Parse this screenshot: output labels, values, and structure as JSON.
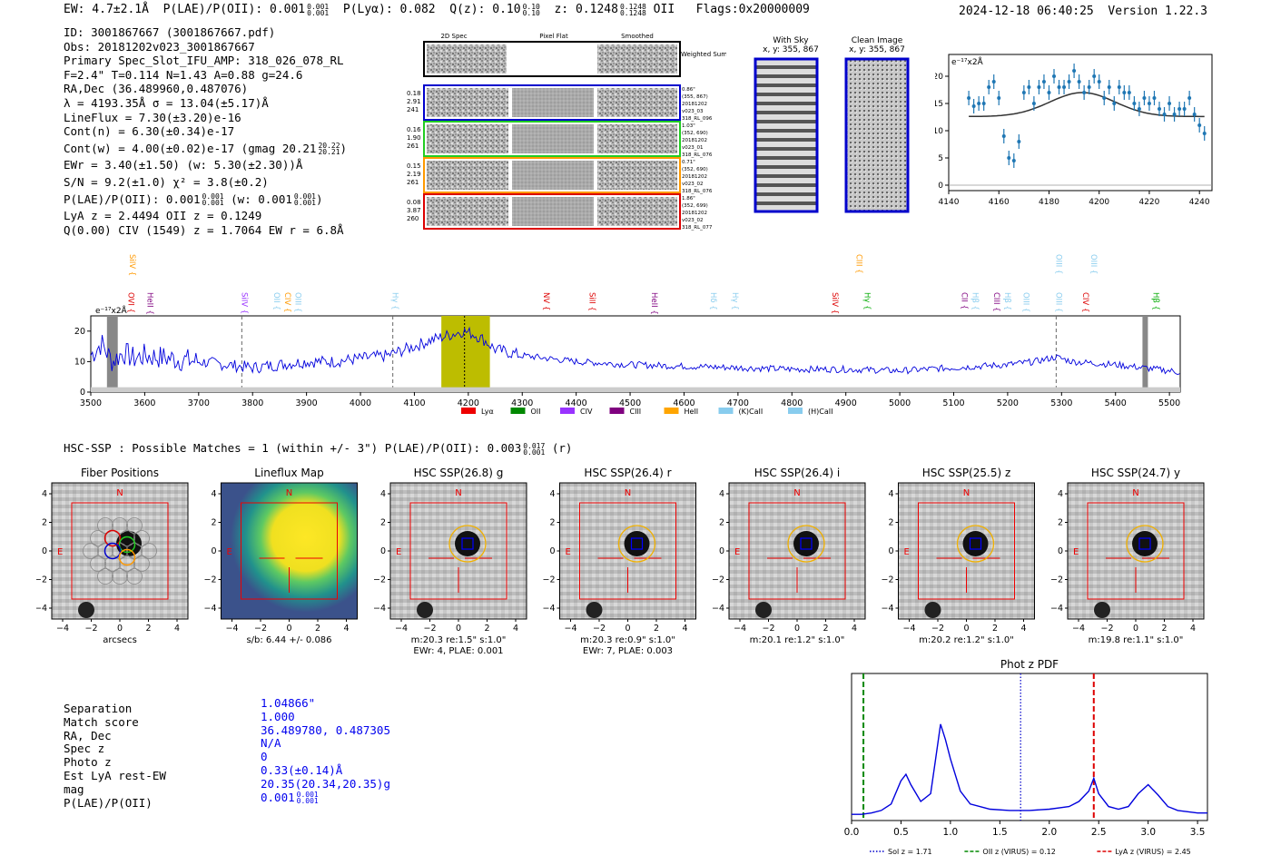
{
  "header": {
    "ew": "EW: 4.7±2.1Å",
    "plae": "P(LAE)/P(OII): 0.001",
    "plae_frac": [
      "0.001",
      "0.001"
    ],
    "plya": "P(Lyα): 0.082",
    "qz": "Q(z): 0.10",
    "qz_frac": [
      "0.10",
      "0.10"
    ],
    "z": "z: 0.1248",
    "z_frac": [
      "0.1248",
      "0.1248"
    ],
    "z_line": "OII",
    "flags": "Flags:0x20000009",
    "datetime": "2024-12-18 06:40:25",
    "version": "Version 1.22.3"
  },
  "info": {
    "lines": [
      "ID: 3001867667 (3001867667.pdf)",
      "Obs: 20181202v023_3001867667",
      "Primary Spec_Slot_IFU_AMP: 318_026_078_RL",
      "F=2.4\"  T=0.114  N=1.43  A=0.88  g=24.6",
      "RA,Dec (36.489960,0.487076)",
      "λ = 4193.35Å  σ = 13.04(±5.17)Å",
      "LineFlux = 7.30(±3.20)e-16",
      "Cont(n) = 6.30(±0.34)e-17",
      "Cont(w) = 4.00(±0.02)e-17 (gmag 20.21",
      "EWr = 3.40(±1.50) (w: 5.30(±2.30))Å",
      "S/N = 9.2(±1.0)  χ² = 3.8(±0.2)",
      "P(LAE)/P(OII): 0.001",
      "LyA z = 2.4494  OII z = 0.1249",
      "Q(0.00) CIV (1549) z = 1.7064  EW r = 6.8Å"
    ],
    "gmag_frac": [
      "20.22",
      "20.21"
    ],
    "plae_frac": [
      "0.001",
      "0.001"
    ],
    "plae_w": "(w: 0.001",
    "plae_w_frac": [
      "0.001",
      "0.001"
    ]
  },
  "cutouts": {
    "col_titles": [
      "2D Spec",
      "Pixel Flat",
      "Smoothed"
    ],
    "weighted_label": "Weighted Sum",
    "rows": [
      {
        "left": [
          "0.18",
          "2.91",
          "241"
        ],
        "right": [
          "0.86\"",
          "(355, 867)",
          "20181202",
          "v023_03",
          "318_RL_096"
        ],
        "color": "#0000cc"
      },
      {
        "left": [
          "0.16",
          "1.90",
          "261"
        ],
        "right": [
          "1.03\"",
          "(352, 690)",
          "20181202",
          "v023_01",
          "318_RL_076"
        ],
        "color": "#22cc22"
      },
      {
        "left": [
          "0.15",
          "2.19",
          "261"
        ],
        "right": [
          "0.71\"",
          "(352, 690)",
          "20181202",
          "v023_02",
          "318_RL_076"
        ],
        "color": "#ff9900"
      },
      {
        "left": [
          "0.08",
          "3.87",
          "260"
        ],
        "right": [
          "1.86\"",
          "(352, 699)",
          "20181202",
          "v023_02",
          "318_RL_077"
        ],
        "color": "#dd0000"
      }
    ],
    "with_sky_title": "With Sky",
    "clean_title": "Clean Image",
    "xy_label": "x, y: 355, 867"
  },
  "zoom_chart": {
    "type": "scatter",
    "ylabel": "e⁻¹⁷x2Å",
    "xlim": [
      4140,
      4245
    ],
    "ylim": [
      -1,
      24
    ],
    "xticks": [
      "4140",
      "4160",
      "4180",
      "4200",
      "4220",
      "4240"
    ],
    "yticks": [
      "0",
      "5",
      "10",
      "15",
      "20"
    ],
    "x": [
      4148,
      4150,
      4152,
      4154,
      4156,
      4158,
      4160,
      4162,
      4164,
      4166,
      4168,
      4170,
      4172,
      4174,
      4176,
      4178,
      4180,
      4182,
      4184,
      4186,
      4188,
      4190,
      4192,
      4194,
      4196,
      4198,
      4200,
      4202,
      4204,
      4206,
      4208,
      4210,
      4212,
      4214,
      4216,
      4218,
      4220,
      4222,
      4224,
      4226,
      4228,
      4230,
      4232,
      4234,
      4236,
      4238,
      4240,
      4242
    ],
    "y": [
      16,
      14.5,
      15,
      15,
      18,
      19,
      16,
      9,
      5,
      4.5,
      8,
      17,
      18,
      15,
      18,
      19,
      17,
      20,
      18,
      18,
      19,
      21,
      19,
      17,
      18,
      20,
      19,
      16,
      18,
      15,
      18,
      17,
      17,
      15,
      14,
      16,
      15,
      16,
      14,
      13,
      15,
      13,
      14,
      14,
      16,
      13,
      11,
      9.5
    ],
    "fit_center": 4193.35,
    "fit_amp": 4.4,
    "fit_base": 12.6,
    "fit_sigma": 13.04
  },
  "full_spectrum": {
    "type": "line",
    "ylabel": "e⁻¹⁷x2Å",
    "xlim": [
      3500,
      5520
    ],
    "ylim": [
      0,
      25
    ],
    "xticks": [
      "3500",
      "3600",
      "3700",
      "3800",
      "3900",
      "4000",
      "4100",
      "4200",
      "4300",
      "4400",
      "4500",
      "4600",
      "4700",
      "4800",
      "4900",
      "5000",
      "5100",
      "5200",
      "5300",
      "5400",
      "5500"
    ],
    "yticks": [
      "0",
      "10",
      "20"
    ],
    "highlight": [
      4150,
      4240
    ],
    "obs_line": 4193,
    "dashed_lines": [
      3780,
      4060,
      5290
    ],
    "masked": [
      [
        3530,
        3550
      ],
      [
        5450,
        5460
      ]
    ],
    "line_labels": [
      {
        "text": "SiIV",
        "x": 3572,
        "row": 0,
        "color": "#ff9900"
      },
      {
        "text": "OVI",
        "x": 3570,
        "row": 1,
        "color": "#dd0000"
      },
      {
        "text": "HeII",
        "x": 3605,
        "row": 1,
        "color": "#7f007f"
      },
      {
        "text": "SiIV",
        "x": 3780,
        "row": 1,
        "color": "#9933ff"
      },
      {
        "text": "OII",
        "x": 3840,
        "row": 1,
        "color": "#88ccee"
      },
      {
        "text": "CIV",
        "x": 3860,
        "row": 1,
        "color": "#ff9900"
      },
      {
        "text": "OIII",
        "x": 3880,
        "row": 1,
        "color": "#88ccee"
      },
      {
        "text": "Hγ",
        "x": 4060,
        "row": 1,
        "color": "#88ccee"
      },
      {
        "text": "NV",
        "x": 4340,
        "row": 1,
        "color": "#dd0000"
      },
      {
        "text": "SiII",
        "x": 4425,
        "row": 1,
        "color": "#dd0000"
      },
      {
        "text": "HeII",
        "x": 4540,
        "row": 1,
        "color": "#7f007f"
      },
      {
        "text": "Hδ",
        "x": 4650,
        "row": 1,
        "color": "#88ccee"
      },
      {
        "text": "Hγ",
        "x": 4690,
        "row": 1,
        "color": "#88ccee"
      },
      {
        "text": "SiIV",
        "x": 4875,
        "row": 1,
        "color": "#dd0000"
      },
      {
        "text": "CIII",
        "x": 4920,
        "row": 0,
        "color": "#ff9900"
      },
      {
        "text": "Hγ",
        "x": 4935,
        "row": 1,
        "color": "#00aa00"
      },
      {
        "text": "CII",
        "x": 5115,
        "row": 1,
        "color": "#7f007f"
      },
      {
        "text": "Hβ",
        "x": 5135,
        "row": 1,
        "color": "#88ccee"
      },
      {
        "text": "CIII",
        "x": 5175,
        "row": 1,
        "color": "#7f007f"
      },
      {
        "text": "Hβ",
        "x": 5195,
        "row": 1,
        "color": "#88ccee"
      },
      {
        "text": "OIII",
        "x": 5230,
        "row": 1,
        "color": "#88ccee"
      },
      {
        "text": "OIII",
        "x": 5290,
        "row": 0,
        "color": "#88ccee"
      },
      {
        "text": "OIII",
        "x": 5290,
        "row": 1,
        "color": "#88ccee"
      },
      {
        "text": "OIII",
        "x": 5355,
        "row": 0,
        "color": "#88ccee"
      },
      {
        "text": "CIV",
        "x": 5340,
        "row": 1,
        "color": "#dd0000"
      },
      {
        "text": "Hβ",
        "x": 5470,
        "row": 1,
        "color": "#00aa00"
      }
    ],
    "legend": [
      {
        "label": "Lyα",
        "color": "#ee0000"
      },
      {
        "label": "OII",
        "color": "#008800"
      },
      {
        "label": "CIV",
        "color": "#9933ff"
      },
      {
        "label": "CIII",
        "color": "#7f007f"
      },
      {
        "label": "HeII",
        "color": "#ffa500"
      },
      {
        "label": "(K)CaII",
        "color": "#88ccee"
      },
      {
        "label": "(H)CaII",
        "color": "#88ccee"
      }
    ],
    "anchors_x": [
      3500,
      3520,
      3540,
      3560,
      3580,
      3600,
      3650,
      3700,
      3750,
      3800,
      3850,
      3900,
      3950,
      4000,
      4050,
      4100,
      4130,
      4150,
      4170,
      4190,
      4210,
      4230,
      4250,
      4300,
      4350,
      4400,
      4500,
      4600,
      4700,
      4800,
      4900,
      5000,
      5100,
      5200,
      5250,
      5290,
      5320,
      5400,
      5450,
      5500,
      5520
    ],
    "anchors_y": [
      12,
      16,
      10,
      13,
      11,
      12,
      11,
      10,
      9,
      8,
      9,
      10,
      10,
      11,
      12,
      15,
      17,
      18,
      19,
      20,
      19,
      17,
      14,
      12,
      11,
      10,
      9,
      8.5,
      8,
      7.5,
      7.5,
      7,
      8,
      9,
      10,
      11.5,
      10,
      9,
      8,
      7,
      6.5
    ]
  },
  "hsc": {
    "header": "HSC-SSP : Possible Matches = 1 (within +/- 3\")  P(LAE)/P(OII): 0.003",
    "header_frac": [
      "0.017",
      "0.001"
    ],
    "header_suffix": "(r)",
    "panels": [
      {
        "title": "Fiber Positions",
        "kind": "fiber",
        "xlabel": "arcsecs",
        "sub2": ""
      },
      {
        "title": "Lineflux Map",
        "kind": "lineflux",
        "xlabel": "s/b: 6.44 +/- 0.086",
        "sub2": ""
      },
      {
        "title": "HSC SSP(26.8) g",
        "kind": "image",
        "xlabel": "m:20.3  re:1.5\"  s:1.0\"",
        "sub2": "EWr: 4, PLAE: 0.001"
      },
      {
        "title": "HSC SSP(26.4) r",
        "kind": "image",
        "xlabel": "m:20.3  re:0.9\"  s:1.0\"",
        "sub2": "EWr: 7, PLAE: 0.003"
      },
      {
        "title": "HSC SSP(26.4) i",
        "kind": "image",
        "xlabel": "m:20.1  re:1.2\"  s:1.0\"",
        "sub2": ""
      },
      {
        "title": "HSC SSP(25.5) z",
        "kind": "image",
        "xlabel": "m:20.2  re:1.2\"  s:1.0\"",
        "sub2": ""
      },
      {
        "title": "HSC SSP(24.7) y",
        "kind": "image",
        "xlabel": "m:19.8  re:1.1\"  s:1.0\"",
        "sub2": ""
      }
    ],
    "ticks": [
      "−4",
      "−2",
      "0",
      "2",
      "4"
    ],
    "north": "N",
    "east": "E"
  },
  "match": {
    "labels": [
      "Separation",
      "Match score",
      "RA, Dec",
      "Spec z",
      "Photo z",
      "Est LyA rest-EW",
      "mag",
      "P(LAE)/P(OII)"
    ],
    "values": [
      "1.04866\"",
      "1.000",
      "36.489780, 0.487305",
      "N/A",
      "0",
      "0.33(±0.14)Å",
      "20.35(20.34,20.35)g",
      "0.001"
    ],
    "plae_frac": [
      "0.001",
      "0.001"
    ]
  },
  "photz": {
    "type": "line",
    "title": "Phot z PDF",
    "xlim": [
      0,
      3.6
    ],
    "xticks": [
      "0.0",
      "0.5",
      "1.0",
      "1.5",
      "2.0",
      "2.5",
      "3.0",
      "3.5"
    ],
    "x": [
      0,
      0.1,
      0.2,
      0.3,
      0.4,
      0.5,
      0.55,
      0.6,
      0.7,
      0.8,
      0.85,
      0.9,
      0.95,
      1.0,
      1.1,
      1.2,
      1.4,
      1.6,
      1.8,
      2.0,
      2.2,
      2.3,
      2.4,
      2.45,
      2.5,
      2.6,
      2.7,
      2.8,
      2.9,
      3.0,
      3.1,
      3.2,
      3.3,
      3.4,
      3.5,
      3.6
    ],
    "y": [
      0.02,
      0.02,
      0.03,
      0.05,
      0.1,
      0.28,
      0.33,
      0.25,
      0.12,
      0.18,
      0.45,
      0.72,
      0.6,
      0.45,
      0.2,
      0.1,
      0.06,
      0.05,
      0.05,
      0.06,
      0.08,
      0.12,
      0.2,
      0.3,
      0.18,
      0.08,
      0.06,
      0.08,
      0.18,
      0.25,
      0.17,
      0.08,
      0.05,
      0.04,
      0.03,
      0.03
    ],
    "markers": [
      {
        "z": 1.71,
        "color": "#0000cc",
        "style": "dotted",
        "label": "Sol z = 1.71"
      },
      {
        "z": 0.12,
        "color": "#008800",
        "style": "dashed",
        "label": "OII z (VIRUS) = 0.12"
      },
      {
        "z": 2.45,
        "color": "#dd0000",
        "style": "dashed",
        "label": "LyA z (VIRUS) = 2.45"
      }
    ]
  }
}
